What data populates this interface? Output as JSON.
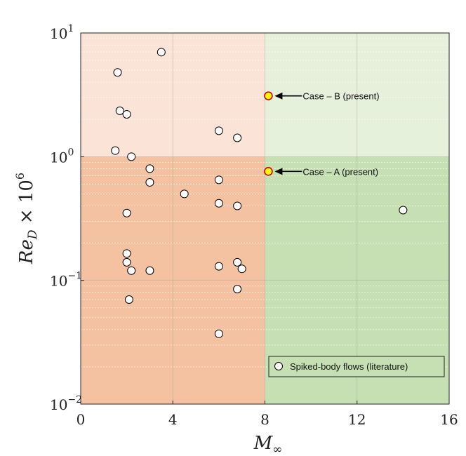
{
  "chart_data": {
    "type": "scatter",
    "xlabel": "M∞",
    "ylabel": "Re_D × 10^6",
    "xlim": [
      0,
      16
    ],
    "ylim": [
      0.01,
      10
    ],
    "y_scale": "log",
    "grid": true,
    "x_ticks": [
      0,
      4,
      8,
      12,
      16
    ],
    "x_tick_labels": [
      "0",
      "4",
      "8",
      "12",
      "16"
    ],
    "y_ticks": [
      0.01,
      0.1,
      1,
      10
    ],
    "y_tick_labels": [
      {
        "base": "10",
        "exp": "−2"
      },
      {
        "base": "10",
        "exp": "−1"
      },
      {
        "base": "10",
        "exp": "0"
      },
      {
        "base": "10",
        "exp": "1"
      }
    ],
    "regions": [
      {
        "x": [
          0,
          8
        ],
        "y": [
          0.01,
          1
        ],
        "color": "#f4c2a1"
      },
      {
        "x": [
          0,
          8
        ],
        "y": [
          1,
          10
        ],
        "color": "#fbe3d8"
      },
      {
        "x": [
          8,
          16
        ],
        "y": [
          0.01,
          1
        ],
        "color": "#c6e0b4"
      },
      {
        "x": [
          8,
          16
        ],
        "y": [
          1,
          10
        ],
        "color": "#e6f1dc"
      }
    ],
    "legend": {
      "position": "bottom-right",
      "label": "Spiked-body flows (literature)"
    },
    "series": [
      {
        "name": "Spiked-body flows (literature)",
        "marker": "circle",
        "fill": "#ffffff",
        "edge": "#000000",
        "points": [
          [
            3.5,
            7.0
          ],
          [
            1.6,
            4.8
          ],
          [
            1.7,
            2.35
          ],
          [
            2.0,
            2.2
          ],
          [
            1.5,
            1.12
          ],
          [
            2.2,
            1.0
          ],
          [
            3.0,
            0.8
          ],
          [
            3.0,
            0.62
          ],
          [
            4.5,
            0.5
          ],
          [
            2.0,
            0.35
          ],
          [
            2.0,
            0.165
          ],
          [
            2.0,
            0.14
          ],
          [
            2.2,
            0.12
          ],
          [
            3.0,
            0.12
          ],
          [
            2.1,
            0.07
          ],
          [
            6.0,
            1.62
          ],
          [
            6.8,
            1.42
          ],
          [
            6.0,
            0.65
          ],
          [
            6.0,
            0.42
          ],
          [
            6.8,
            0.4
          ],
          [
            6.0,
            0.13
          ],
          [
            6.8,
            0.14
          ],
          [
            7.0,
            0.124
          ],
          [
            6.8,
            0.085
          ],
          [
            6.0,
            0.037
          ],
          [
            14.0,
            0.37
          ]
        ]
      },
      {
        "marker": "circle",
        "fill": "#ffff00",
        "edge": "#cc0000",
        "points": [
          [
            8.15,
            3.1
          ],
          [
            8.15,
            0.76
          ]
        ]
      }
    ],
    "annotations": [
      {
        "text": "Case – B (present)",
        "x": 8.15,
        "y": 3.1
      },
      {
        "text": "Case – A (present)",
        "x": 8.15,
        "y": 0.76
      }
    ]
  }
}
